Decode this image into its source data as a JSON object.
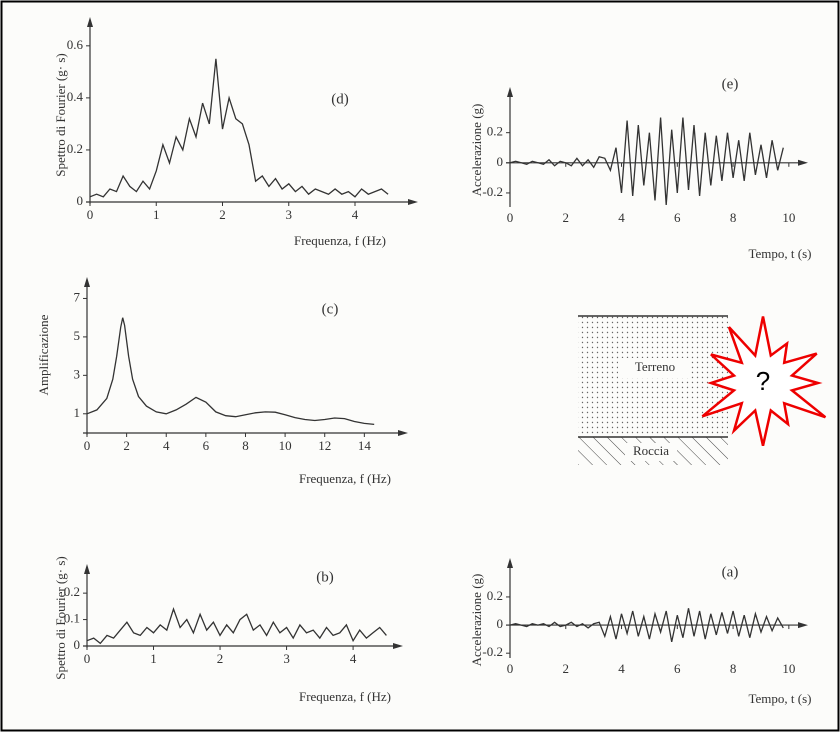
{
  "chart_data": [
    {
      "type": "line",
      "title": "(d)",
      "x_label": "Frequenza, f (Hz)",
      "y_label": "Spettro di Fourier (g· s)",
      "xlim": [
        0,
        4.83
      ],
      "ylim": [
        0,
        0.68
      ],
      "xticks": [
        0,
        1,
        2,
        3,
        4
      ],
      "yticks": [
        0,
        0.2,
        0.4,
        0.6
      ],
      "series": [
        {
          "color": "#333333",
          "x": [
            0,
            0.1,
            0.2,
            0.3,
            0.4,
            0.5,
            0.6,
            0.7,
            0.8,
            0.9,
            1,
            1.1,
            1.2,
            1.3,
            1.4,
            1.5,
            1.6,
            1.7,
            1.8,
            1.9,
            2,
            2.1,
            2.2,
            2.3,
            2.4,
            2.5,
            2.6,
            2.7,
            2.8,
            2.9,
            3,
            3.1,
            3.2,
            3.3,
            3.4,
            3.5,
            3.6,
            3.7,
            3.8,
            3.9,
            4,
            4.1,
            4.2,
            4.3,
            4.4,
            4.5
          ],
          "values": [
            0.02,
            0.03,
            0.02,
            0.05,
            0.04,
            0.1,
            0.06,
            0.04,
            0.08,
            0.05,
            0.12,
            0.22,
            0.15,
            0.25,
            0.2,
            0.32,
            0.25,
            0.38,
            0.3,
            0.55,
            0.28,
            0.4,
            0.32,
            0.3,
            0.22,
            0.08,
            0.1,
            0.06,
            0.09,
            0.05,
            0.07,
            0.04,
            0.06,
            0.03,
            0.05,
            0.04,
            0.03,
            0.05,
            0.03,
            0.04,
            0.02,
            0.05,
            0.03,
            0.04,
            0.05,
            0.03
          ]
        }
      ]
    },
    {
      "type": "line",
      "title": "(e)",
      "x_label": "Tempo, t (s)",
      "y_label": "Accelerazione (g)",
      "xlim": [
        0,
        10.4
      ],
      "ylim": [
        -0.28,
        0.45
      ],
      "xticks": [
        0,
        2,
        4,
        6,
        8,
        10
      ],
      "yticks": [
        -0.2,
        0,
        0.2
      ],
      "series": [
        {
          "color": "#333333",
          "x": [
            0,
            0.2,
            0.4,
            0.6,
            0.8,
            1,
            1.2,
            1.4,
            1.6,
            1.8,
            2,
            2.2,
            2.4,
            2.6,
            2.8,
            3,
            3.2,
            3.4,
            3.6,
            3.8,
            4,
            4.2,
            4.4,
            4.6,
            4.8,
            5,
            5.2,
            5.4,
            5.6,
            5.8,
            6,
            6.2,
            6.4,
            6.6,
            6.8,
            7,
            7.2,
            7.4,
            7.6,
            7.8,
            8,
            8.2,
            8.4,
            8.6,
            8.8,
            9,
            9.2,
            9.4,
            9.6,
            9.8
          ],
          "values": [
            0,
            0.01,
            0,
            -0.01,
            0.01,
            0,
            -0.01,
            0.02,
            -0.02,
            0.01,
            0,
            -0.02,
            0.03,
            -0.02,
            0.02,
            -0.03,
            0.04,
            0.03,
            -0.05,
            0.1,
            -0.2,
            0.28,
            -0.22,
            0.25,
            -0.15,
            0.2,
            -0.25,
            0.3,
            -0.28,
            0.22,
            -0.2,
            0.3,
            -0.18,
            0.25,
            -0.22,
            0.2,
            -0.15,
            0.18,
            -0.12,
            0.2,
            -0.1,
            0.15,
            -0.12,
            0.2,
            -0.08,
            0.12,
            -0.1,
            0.15,
            -0.05,
            0.1
          ]
        }
      ]
    },
    {
      "type": "line",
      "title": "(c)",
      "x_label": "Frequenza, f (Hz)",
      "y_label": "Amplificazione",
      "xlim": [
        0,
        15.8
      ],
      "ylim": [
        0,
        7.7
      ],
      "xticks": [
        0,
        2,
        4,
        6,
        8,
        10,
        12,
        14
      ],
      "yticks": [
        1,
        3,
        5,
        7
      ],
      "series": [
        {
          "color": "#333333",
          "x": [
            0,
            0.5,
            1,
            1.3,
            1.5,
            1.7,
            1.8,
            1.9,
            2.1,
            2.3,
            2.6,
            3,
            3.5,
            4,
            4.5,
            5,
            5.5,
            6,
            6.5,
            7,
            7.5,
            8,
            8.5,
            9,
            9.5,
            10,
            10.5,
            11,
            11.5,
            12,
            12.5,
            13,
            13.5,
            14,
            14.5
          ],
          "values": [
            1.0,
            1.2,
            1.8,
            2.8,
            4.0,
            5.5,
            6.0,
            5.6,
            4.0,
            2.8,
            1.9,
            1.4,
            1.1,
            1.0,
            1.2,
            1.5,
            1.85,
            1.6,
            1.1,
            0.9,
            0.85,
            0.95,
            1.05,
            1.1,
            1.08,
            0.95,
            0.8,
            0.7,
            0.65,
            0.7,
            0.78,
            0.75,
            0.6,
            0.5,
            0.45
          ]
        }
      ]
    },
    {
      "type": "line",
      "title": "(b)",
      "x_label": "Frequenza, f (Hz)",
      "y_label": "Spettro di Fourier (g· s)",
      "xlim": [
        0,
        4.63
      ],
      "ylim": [
        0,
        0.28
      ],
      "xticks": [
        0,
        1,
        2,
        3,
        4
      ],
      "yticks": [
        0,
        0.1,
        0.2
      ],
      "series": [
        {
          "color": "#333333",
          "x": [
            0,
            0.1,
            0.2,
            0.3,
            0.4,
            0.5,
            0.6,
            0.7,
            0.8,
            0.9,
            1,
            1.1,
            1.2,
            1.3,
            1.4,
            1.5,
            1.6,
            1.7,
            1.8,
            1.9,
            2,
            2.1,
            2.2,
            2.3,
            2.4,
            2.5,
            2.6,
            2.7,
            2.8,
            2.9,
            3,
            3.1,
            3.2,
            3.3,
            3.4,
            3.5,
            3.6,
            3.7,
            3.8,
            3.9,
            4,
            4.1,
            4.2,
            4.3,
            4.4,
            4.5
          ],
          "values": [
            0.02,
            0.03,
            0.01,
            0.04,
            0.03,
            0.06,
            0.09,
            0.05,
            0.04,
            0.07,
            0.05,
            0.08,
            0.06,
            0.14,
            0.07,
            0.1,
            0.05,
            0.12,
            0.06,
            0.09,
            0.04,
            0.08,
            0.05,
            0.1,
            0.12,
            0.06,
            0.08,
            0.04,
            0.09,
            0.05,
            0.07,
            0.03,
            0.08,
            0.05,
            0.06,
            0.03,
            0.07,
            0.04,
            0.05,
            0.08,
            0.02,
            0.06,
            0.03,
            0.05,
            0.07,
            0.04
          ]
        }
      ]
    },
    {
      "type": "line",
      "title": "(a)",
      "x_label": "Tempo, t (s)",
      "y_label": "Accelerazione (g)",
      "xlim": [
        0,
        10.4
      ],
      "ylim": [
        -0.22,
        0.42
      ],
      "xticks": [
        0,
        2,
        4,
        6,
        8,
        10
      ],
      "yticks": [
        -0.2,
        0,
        0.2
      ],
      "series": [
        {
          "color": "#333333",
          "x": [
            0,
            0.2,
            0.4,
            0.6,
            0.8,
            1,
            1.2,
            1.4,
            1.6,
            1.8,
            2,
            2.2,
            2.4,
            2.6,
            2.8,
            3,
            3.2,
            3.4,
            3.6,
            3.8,
            4,
            4.2,
            4.4,
            4.6,
            4.8,
            5,
            5.2,
            5.4,
            5.6,
            5.8,
            6,
            6.2,
            6.4,
            6.6,
            6.8,
            7,
            7.2,
            7.4,
            7.6,
            7.8,
            8,
            8.2,
            8.4,
            8.6,
            8.8,
            9,
            9.2,
            9.4,
            9.6,
            9.8
          ],
          "values": [
            0,
            0.01,
            0,
            -0.01,
            0.01,
            0,
            0.01,
            -0.01,
            0.02,
            -0.01,
            0,
            0.02,
            -0.01,
            0.01,
            -0.02,
            0.01,
            0.02,
            -0.08,
            0.06,
            -0.1,
            0.08,
            -0.06,
            0.1,
            -0.08,
            0.06,
            -0.1,
            0.08,
            -0.05,
            0.1,
            -0.12,
            0.07,
            -0.09,
            0.12,
            -0.08,
            0.1,
            -0.1,
            0.08,
            -0.07,
            0.09,
            -0.06,
            0.1,
            -0.08,
            0.07,
            -0.09,
            0.08,
            -0.05,
            0.06,
            -0.04,
            0.05,
            -0.02
          ]
        }
      ]
    }
  ],
  "diagram": {
    "soil": "Terreno",
    "rock": "Roccia",
    "question": "?"
  }
}
